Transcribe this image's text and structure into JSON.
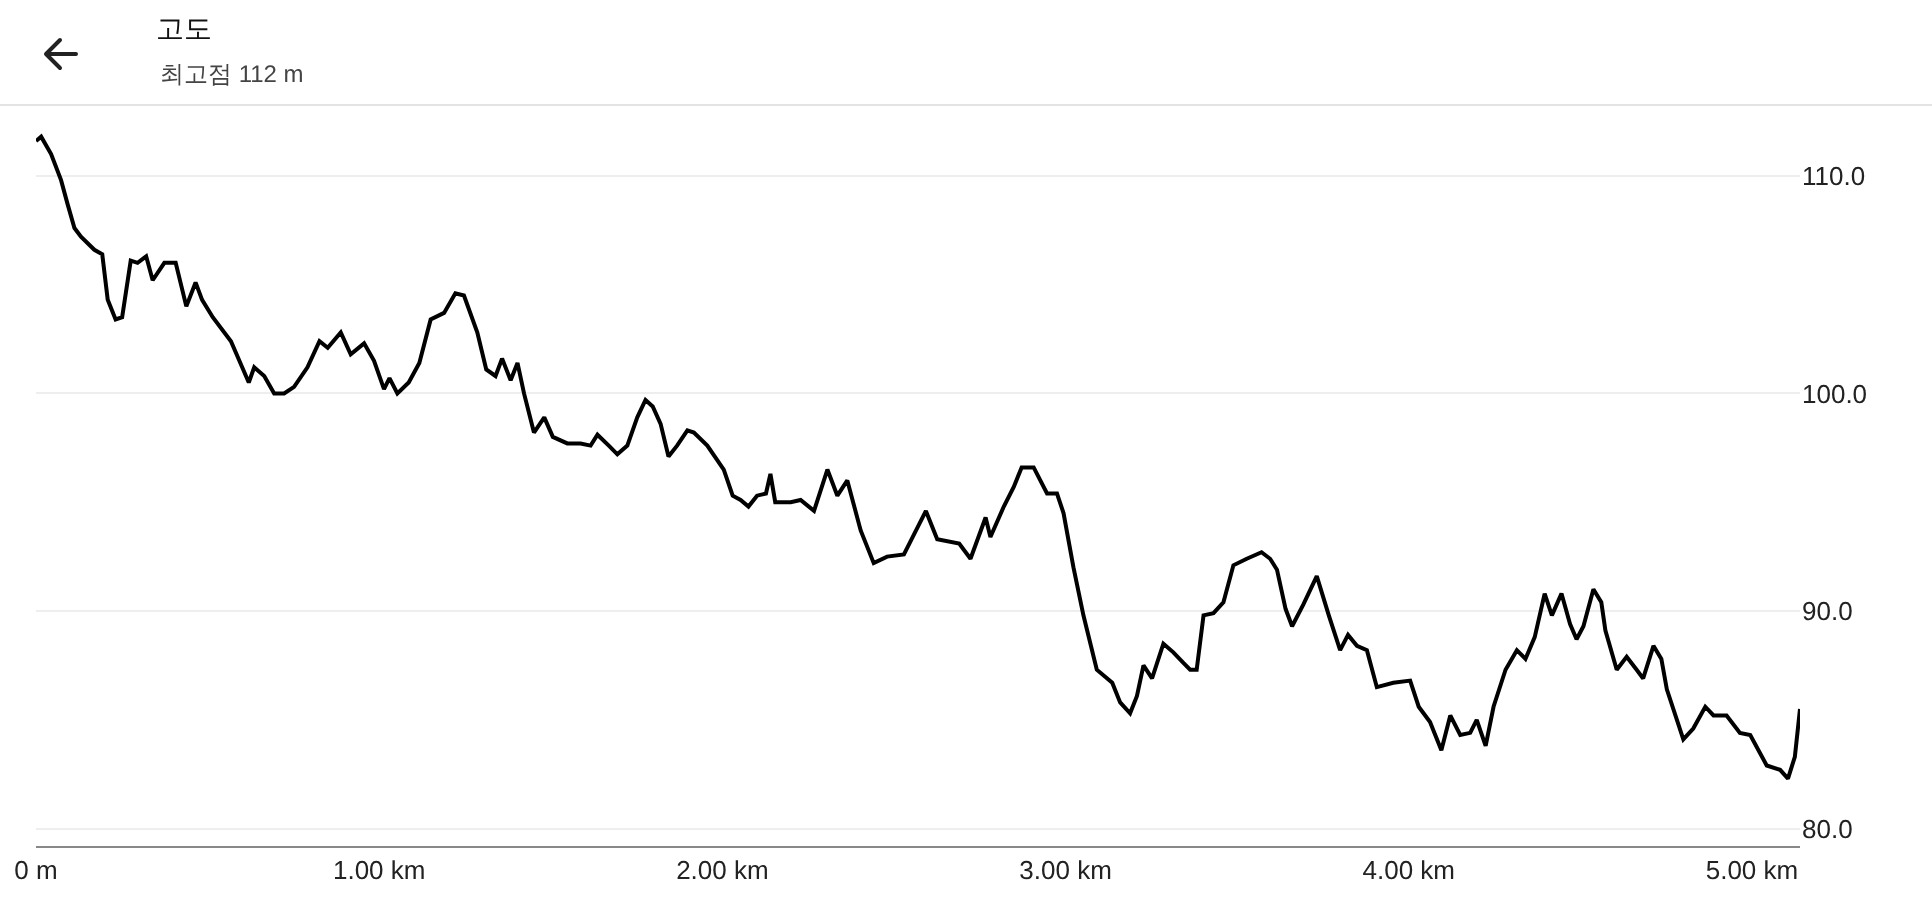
{
  "chart_data": {
    "type": "line",
    "title": "고도",
    "subtitle": "최고점 112 m",
    "x": [
      0.0,
      0.015,
      0.044,
      0.073,
      0.092,
      0.112,
      0.131,
      0.17,
      0.193,
      0.209,
      0.232,
      0.251,
      0.276,
      0.296,
      0.321,
      0.34,
      0.374,
      0.407,
      0.438,
      0.465,
      0.484,
      0.515,
      0.568,
      0.62,
      0.636,
      0.665,
      0.694,
      0.723,
      0.752,
      0.791,
      0.826,
      0.85,
      0.888,
      0.917,
      0.956,
      0.985,
      1.014,
      1.03,
      1.053,
      1.086,
      1.117,
      1.15,
      1.189,
      1.222,
      1.247,
      1.286,
      1.312,
      1.339,
      1.358,
      1.383,
      1.403,
      1.422,
      1.451,
      1.481,
      1.506,
      1.548,
      1.587,
      1.616,
      1.636,
      1.669,
      1.694,
      1.723,
      1.752,
      1.776,
      1.797,
      1.82,
      1.843,
      1.868,
      1.898,
      1.917,
      1.956,
      2.004,
      2.03,
      2.053,
      2.076,
      2.101,
      2.127,
      2.14,
      2.154,
      2.199,
      2.228,
      2.267,
      2.306,
      2.335,
      2.364,
      2.403,
      2.441,
      2.48,
      2.529,
      2.593,
      2.626,
      2.69,
      2.723,
      2.767,
      2.781,
      2.82,
      2.849,
      2.872,
      2.907,
      2.946,
      2.975,
      2.994,
      3.023,
      3.052,
      3.091,
      3.136,
      3.159,
      3.188,
      3.208,
      3.227,
      3.252,
      3.285,
      3.314,
      3.344,
      3.363,
      3.382,
      3.402,
      3.431,
      3.46,
      3.489,
      3.528,
      3.571,
      3.596,
      3.616,
      3.641,
      3.66,
      3.693,
      3.732,
      3.767,
      3.8,
      3.823,
      3.849,
      3.878,
      3.907,
      3.955,
      4.004,
      4.029,
      4.062,
      4.095,
      4.121,
      4.15,
      4.179,
      4.198,
      4.224,
      4.247,
      4.282,
      4.315,
      4.34,
      4.367,
      4.396,
      4.417,
      4.445,
      4.47,
      4.489,
      4.509,
      4.538,
      4.561,
      4.573,
      4.606,
      4.635,
      4.664,
      4.683,
      4.713,
      4.736,
      4.752,
      4.8,
      4.829,
      4.864,
      4.888,
      4.926,
      4.965,
      4.995,
      5.043,
      5.082,
      5.105,
      5.125,
      5.14
    ],
    "values": [
      111.6,
      111.8,
      111.0,
      109.8,
      108.7,
      107.6,
      107.2,
      106.6,
      106.4,
      104.3,
      103.4,
      103.5,
      106.1,
      106.0,
      106.3,
      105.2,
      106.0,
      106.0,
      104.0,
      105.1,
      104.3,
      103.5,
      102.4,
      100.5,
      101.2,
      100.8,
      100.0,
      100.0,
      100.3,
      101.2,
      102.4,
      102.1,
      102.8,
      101.8,
      102.3,
      101.5,
      100.2,
      100.7,
      100.0,
      100.5,
      101.4,
      103.4,
      103.7,
      104.6,
      104.5,
      102.8,
      101.1,
      100.8,
      101.6,
      100.6,
      101.4,
      100.0,
      98.2,
      98.9,
      98.0,
      97.7,
      97.7,
      97.6,
      98.1,
      97.6,
      97.2,
      97.6,
      98.9,
      99.7,
      99.4,
      98.6,
      97.1,
      97.6,
      98.3,
      98.2,
      97.6,
      96.5,
      95.3,
      95.1,
      94.8,
      95.3,
      95.4,
      96.3,
      95.0,
      95.0,
      95.1,
      94.6,
      96.5,
      95.3,
      96.0,
      93.7,
      92.2,
      92.5,
      92.6,
      94.6,
      93.3,
      93.1,
      92.4,
      94.3,
      93.4,
      94.8,
      95.7,
      96.6,
      96.6,
      95.4,
      95.4,
      94.5,
      92.0,
      89.8,
      87.3,
      86.7,
      85.8,
      85.3,
      86.1,
      87.5,
      86.9,
      88.5,
      88.1,
      87.6,
      87.3,
      87.3,
      89.8,
      89.9,
      90.4,
      92.1,
      92.4,
      92.7,
      92.4,
      91.9,
      90.1,
      89.3,
      90.3,
      91.6,
      89.8,
      88.2,
      88.9,
      88.4,
      88.2,
      86.5,
      86.7,
      86.8,
      85.6,
      84.9,
      83.6,
      85.2,
      84.3,
      84.4,
      85.0,
      83.8,
      85.6,
      87.3,
      88.2,
      87.8,
      88.8,
      90.8,
      89.8,
      90.8,
      89.4,
      88.7,
      89.3,
      91.0,
      90.4,
      89.1,
      87.3,
      87.9,
      87.3,
      86.9,
      88.4,
      87.8,
      86.4,
      84.1,
      84.6,
      85.6,
      85.2,
      85.2,
      84.4,
      84.3,
      82.9,
      82.7,
      82.3,
      83.3,
      85.5
    ],
    "color": "#000000",
    "xlim": [
      0,
      5.14
    ],
    "xticks": [
      {
        "value": 0,
        "label": "0 m"
      },
      {
        "value": 1,
        "label": "1.00 km"
      },
      {
        "value": 2,
        "label": "2.00 km"
      },
      {
        "value": 3,
        "label": "3.00 km"
      },
      {
        "value": 4,
        "label": "4.00 km"
      },
      {
        "value": 5,
        "label": "5.00 km"
      }
    ],
    "ylim": [
      79.2,
      113.3
    ],
    "yticks": [
      {
        "value": 80,
        "label": "80.0"
      },
      {
        "value": 90,
        "label": "90.0"
      },
      {
        "value": 100,
        "label": "100.0"
      },
      {
        "value": 110,
        "label": "110.0"
      }
    ],
    "grid": "y",
    "line_style": "solid"
  }
}
